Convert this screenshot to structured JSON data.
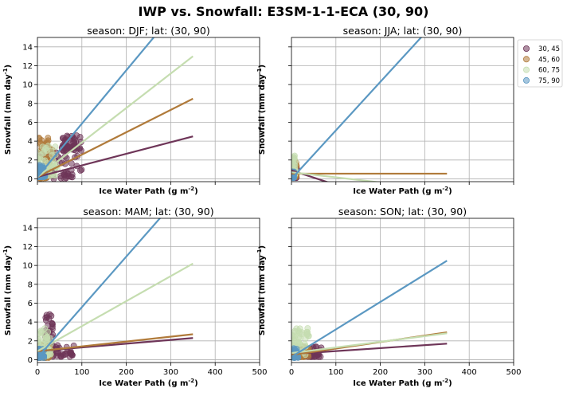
{
  "figure": {
    "suptitle": "IWP vs. Snowfall: E3SM-1-1-ECA  (30, 90)"
  },
  "legend": {
    "entries": [
      {
        "label": "30, 45",
        "color": "#6e3558"
      },
      {
        "label": "45, 60",
        "color": "#b07a3a"
      },
      {
        "label": "60, 75",
        "color": "#c5ddb0"
      },
      {
        "label": "75, 90",
        "color": "#5b98c2"
      }
    ]
  },
  "chart_data": [
    {
      "type": "scatter",
      "title": "season: DJF; lat: (30, 90)",
      "xlabel": "Ice Water Path (g m$^{-2}$)",
      "ylabel": "Snowfall (mm day$^{-1}$)",
      "xlim": [
        0,
        500
      ],
      "ylim": [
        -0.3,
        15
      ],
      "xticks": [
        0,
        100,
        200,
        300,
        400,
        500
      ],
      "yticks": [
        0,
        2,
        4,
        6,
        8,
        10,
        12,
        14
      ],
      "show_xticklabels": false,
      "show_yticklabels": true,
      "grid": true,
      "series": [
        {
          "name": "30, 45",
          "fit": {
            "x": [
              0,
              350
            ],
            "y": [
              0.2,
              4.5
            ]
          },
          "clusters": [
            {
              "x": [
                5,
                100
              ],
              "y": [
                0.0,
                3.0
              ]
            },
            {
              "x": [
                55,
                100
              ],
              "y": [
                3.0,
                4.6
              ]
            }
          ]
        },
        {
          "name": "45, 60",
          "fit": {
            "x": [
              0,
              350
            ],
            "y": [
              0.2,
              8.5
            ]
          },
          "clusters": [
            {
              "x": [
                3,
                35
              ],
              "y": [
                0.0,
                4.4
              ]
            }
          ]
        },
        {
          "name": "60, 75",
          "fit": {
            "x": [
              0,
              350
            ],
            "y": [
              0.2,
              13.0
            ]
          },
          "clusters": [
            {
              "x": [
                0,
                45
              ],
              "y": [
                0.3,
                3.6
              ]
            }
          ]
        },
        {
          "name": "75, 90",
          "fit": {
            "x": [
              0,
              350
            ],
            "y": [
              0.2,
              20.0
            ]
          },
          "clusters": [
            {
              "x": [
                0,
                18
              ],
              "y": [
                0.2,
                1.5
              ]
            }
          ]
        }
      ]
    },
    {
      "type": "scatter",
      "title": "season: JJA; lat: (30, 90)",
      "xlabel": "Ice Water Path (g m$^{-2}$)",
      "ylabel": "Snowfall (mm day$^{-1}$)",
      "xlim": [
        0,
        500
      ],
      "ylim": [
        -0.3,
        15
      ],
      "xticks": [
        0,
        100,
        200,
        300,
        400,
        500
      ],
      "yticks": [
        0,
        2,
        4,
        6,
        8,
        10,
        12,
        14
      ],
      "show_xticklabels": false,
      "show_yticklabels": false,
      "grid": true,
      "series": [
        {
          "name": "30, 45",
          "fit": {
            "x": [
              0,
              350
            ],
            "y": [
              0.9,
              -4.5
            ]
          },
          "clusters": [
            {
              "x": [
                0,
                12
              ],
              "y": [
                0.1,
                1.2
              ]
            }
          ]
        },
        {
          "name": "45, 60",
          "fit": {
            "x": [
              0,
              350
            ],
            "y": [
              0.55,
              0.55
            ]
          },
          "clusters": [
            {
              "x": [
                0,
                12
              ],
              "y": [
                0.2,
                2.2
              ]
            }
          ]
        },
        {
          "name": "60, 75",
          "fit": {
            "x": [
              0,
              350
            ],
            "y": [
              0.7,
              -1.2
            ]
          },
          "clusters": [
            {
              "x": [
                0,
                10
              ],
              "y": [
                0.3,
                2.6
              ]
            }
          ]
        },
        {
          "name": "75, 90",
          "fit": {
            "x": [
              0,
              350
            ],
            "y": [
              0.0,
              18.0
            ]
          },
          "clusters": [
            {
              "x": [
                0,
                6
              ],
              "y": [
                0.1,
                0.8
              ]
            }
          ]
        }
      ]
    },
    {
      "type": "scatter",
      "title": "season: MAM; lat: (30, 90)",
      "xlabel": "Ice Water Path (g m$^{-2}$)",
      "ylabel": "Snowfall (mm day$^{-1}$)",
      "xlim": [
        0,
        500
      ],
      "ylim": [
        -0.3,
        15
      ],
      "xticks": [
        0,
        100,
        200,
        300,
        400,
        500
      ],
      "yticks": [
        0,
        2,
        4,
        6,
        8,
        10,
        12,
        14
      ],
      "show_xticklabels": true,
      "show_yticklabels": true,
      "grid": true,
      "series": [
        {
          "name": "30, 45",
          "fit": {
            "x": [
              0,
              350
            ],
            "y": [
              0.9,
              2.3
            ]
          },
          "clusters": [
            {
              "x": [
                5,
                85
              ],
              "y": [
                0.3,
                1.6
              ]
            },
            {
              "x": [
                18,
                35
              ],
              "y": [
                1.0,
                5.0
              ]
            }
          ]
        },
        {
          "name": "45, 60",
          "fit": {
            "x": [
              0,
              350
            ],
            "y": [
              0.9,
              2.7
            ]
          },
          "clusters": [
            {
              "x": [
                3,
                30
              ],
              "y": [
                0.2,
                1.6
              ]
            }
          ]
        },
        {
          "name": "60, 75",
          "fit": {
            "x": [
              0,
              350
            ],
            "y": [
              0.9,
              10.2
            ]
          },
          "clusters": [
            {
              "x": [
                0,
                30
              ],
              "y": [
                0.4,
                3.5
              ]
            }
          ]
        },
        {
          "name": "75, 90",
          "fit": {
            "x": [
              0,
              350
            ],
            "y": [
              0.2,
              19.0
            ]
          },
          "clusters": [
            {
              "x": [
                0,
                15
              ],
              "y": [
                0.2,
                1.3
              ]
            }
          ]
        }
      ]
    },
    {
      "type": "scatter",
      "title": "season: SON; lat: (30, 90)",
      "xlabel": "Ice Water Path (g m$^{-2}$)",
      "ylabel": "Snowfall (mm day$^{-1}$)",
      "xlim": [
        0,
        500
      ],
      "ylim": [
        -0.3,
        15
      ],
      "xticks": [
        0,
        100,
        200,
        300,
        400,
        500
      ],
      "yticks": [
        0,
        2,
        4,
        6,
        8,
        10,
        12,
        14
      ],
      "show_xticklabels": true,
      "show_yticklabels": false,
      "grid": true,
      "series": [
        {
          "name": "30, 45",
          "fit": {
            "x": [
              0,
              350
            ],
            "y": [
              0.6,
              1.7
            ]
          },
          "clusters": [
            {
              "x": [
                5,
                70
              ],
              "y": [
                0.3,
                1.4
              ]
            }
          ]
        },
        {
          "name": "45, 60",
          "fit": {
            "x": [
              0,
              350
            ],
            "y": [
              0.5,
              2.9
            ]
          },
          "clusters": [
            {
              "x": [
                3,
                40
              ],
              "y": [
                0.3,
                1.5
              ]
            }
          ]
        },
        {
          "name": "60, 75",
          "fit": {
            "x": [
              0,
              350
            ],
            "y": [
              0.7,
              2.8
            ]
          },
          "clusters": [
            {
              "x": [
                0,
                40
              ],
              "y": [
                0.5,
                3.6
              ]
            }
          ]
        },
        {
          "name": "75, 90",
          "fit": {
            "x": [
              0,
              350
            ],
            "y": [
              0.3,
              10.5
            ]
          },
          "clusters": [
            {
              "x": [
                0,
                15
              ],
              "y": [
                0.2,
                1.2
              ]
            }
          ]
        }
      ]
    }
  ]
}
